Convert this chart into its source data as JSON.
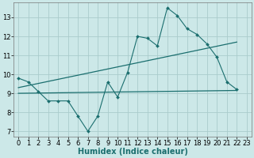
{
  "xlabel": "Humidex (Indice chaleur)",
  "background_color": "#cce8e8",
  "grid_color": "#aacccc",
  "line_color": "#1a6e6e",
  "xlim": [
    -0.5,
    23.5
  ],
  "ylim": [
    6.7,
    13.8
  ],
  "xticks": [
    0,
    1,
    2,
    3,
    4,
    5,
    6,
    7,
    8,
    9,
    10,
    11,
    12,
    13,
    14,
    15,
    16,
    17,
    18,
    19,
    20,
    21,
    22,
    23
  ],
  "yticks": [
    7,
    8,
    9,
    10,
    11,
    12,
    13
  ],
  "line1_x": [
    0,
    1,
    2,
    3,
    4,
    5,
    6,
    7,
    8,
    9,
    10,
    11,
    12,
    13,
    14,
    15,
    16,
    17,
    18,
    19,
    20,
    21,
    22
  ],
  "line1_y": [
    9.8,
    9.6,
    9.1,
    8.6,
    8.6,
    8.6,
    7.8,
    7.0,
    7.8,
    9.6,
    8.8,
    10.1,
    12.0,
    11.9,
    11.5,
    13.5,
    13.1,
    12.4,
    12.1,
    11.6,
    10.9,
    9.6,
    9.2
  ],
  "line2_x": [
    0,
    22
  ],
  "line2_y": [
    9.3,
    11.7
  ],
  "line3_x": [
    0,
    22
  ],
  "line3_y": [
    9.0,
    9.15
  ],
  "xlabel_fontsize": 7,
  "tick_fontsize": 6
}
